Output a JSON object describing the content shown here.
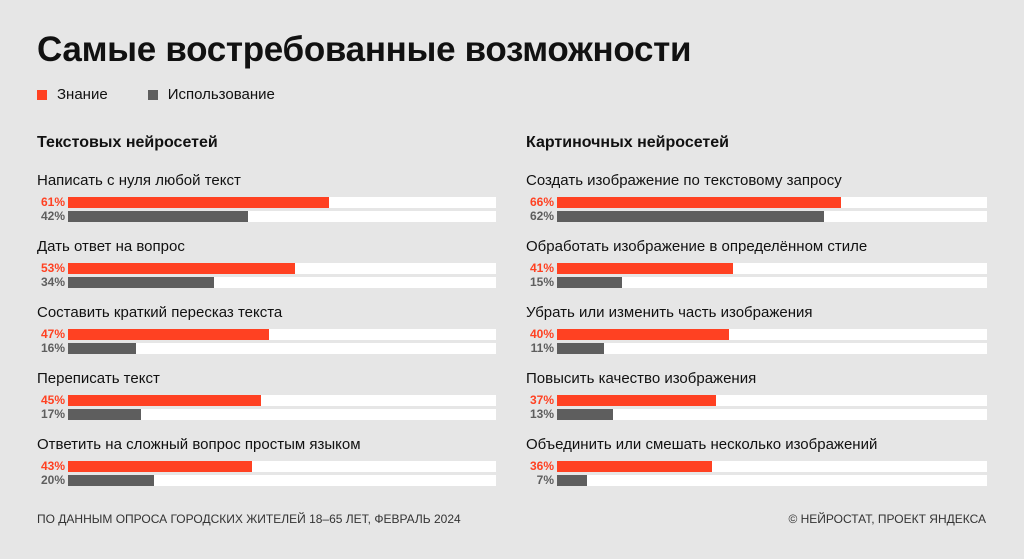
{
  "title": "Самые востребованные возможности",
  "legend": [
    {
      "label": "Знание",
      "color": "#ff4122"
    },
    {
      "label": "Использование",
      "color": "#5e5e5e"
    }
  ],
  "chart_data": [
    {
      "type": "bar",
      "orientation": "horizontal",
      "title": "Текстовых нейросетей",
      "xlim": [
        0,
        100
      ],
      "categories": [
        "Написать с нуля любой текст",
        "Дать ответ на вопрос",
        "Составить краткий пересказ текста",
        "Переписать текст",
        "Ответить на сложный вопрос простым языком"
      ],
      "series": [
        {
          "name": "Знание",
          "values": [
            61,
            53,
            47,
            45,
            43
          ]
        },
        {
          "name": "Использование",
          "values": [
            42,
            34,
            16,
            17,
            20
          ]
        }
      ]
    },
    {
      "type": "bar",
      "orientation": "horizontal",
      "title": "Картиночных нейросетей",
      "xlim": [
        0,
        100
      ],
      "categories": [
        "Создать изображение по текстовому запросу",
        "Обработать изображение в определённом стиле",
        "Убрать или изменить часть изображения",
        "Повысить качество изображения",
        "Объединить или смешать несколько изображений"
      ],
      "series": [
        {
          "name": "Знание",
          "values": [
            66,
            41,
            40,
            37,
            36
          ]
        },
        {
          "name": "Использование",
          "values": [
            62,
            15,
            11,
            13,
            7
          ]
        }
      ]
    }
  ],
  "footer": {
    "source": "ПО ДАННЫМ ОПРОСА ГОРОДСКИХ ЖИТЕЛЕЙ 18–65 ЛЕТ, ФЕВРАЛЬ 2024",
    "credit": "© НЕЙРОСТАТ, ПРОЕКТ ЯНДЕКСА"
  }
}
